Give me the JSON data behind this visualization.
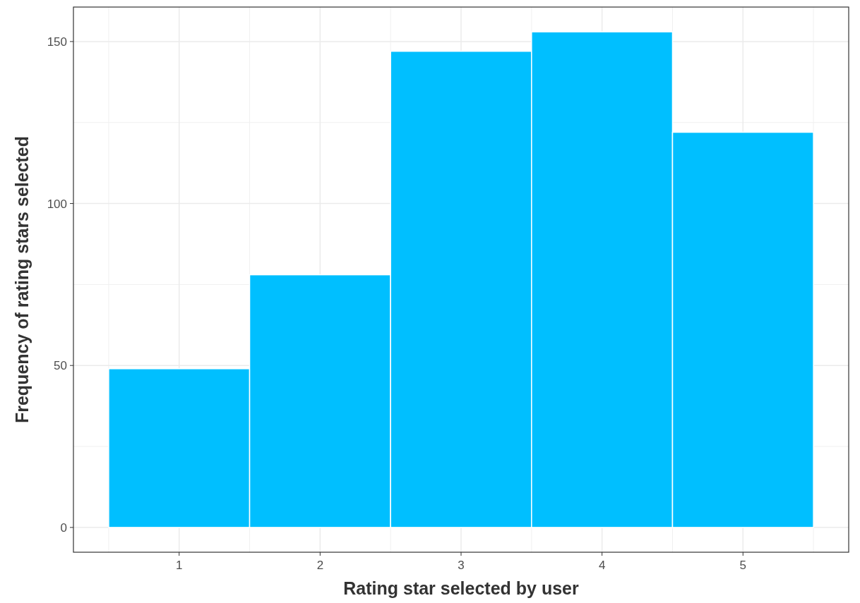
{
  "chart_data": {
    "type": "histogram",
    "xlabel": "Rating star selected by user",
    "ylabel": "Frequency of rating stars selected",
    "bins": [
      0.5,
      1.5,
      2.5,
      3.5,
      4.5,
      5.5
    ],
    "values": [
      49,
      78,
      147,
      153,
      122
    ],
    "color": "#00bfff",
    "xlim": [
      0.25,
      5.75
    ],
    "xticks": [
      1,
      2,
      3,
      4,
      5
    ],
    "ylim": [
      -7.65,
      160.65
    ],
    "yticks": [
      0,
      50,
      100,
      150
    ],
    "grid": true
  }
}
